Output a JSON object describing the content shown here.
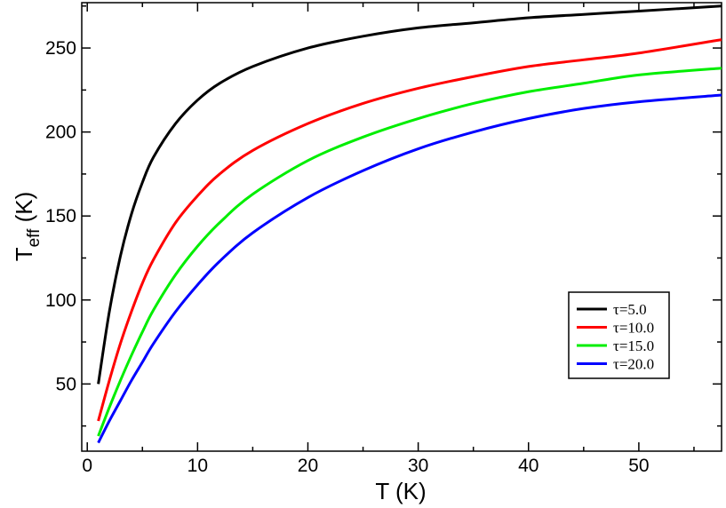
{
  "chart_data": {
    "type": "line",
    "title": "",
    "xlabel": "T (K)",
    "ylabel": {
      "main": "T",
      "subscript": "eff",
      "unit": " (K)"
    },
    "xlim": [
      -0.5,
      57.5
    ],
    "ylim": [
      10,
      277
    ],
    "xticks": [
      0,
      10,
      20,
      30,
      40,
      50
    ],
    "xtick_labels": [
      "0",
      "10",
      "20",
      "30",
      "40",
      "50"
    ],
    "yticks": [
      50,
      100,
      150,
      200,
      250
    ],
    "ytick_labels": [
      "50",
      "100",
      "150",
      "200",
      "250"
    ],
    "grid": false,
    "legend_position": "lower-right",
    "x": [
      1,
      2,
      3,
      4,
      5,
      6,
      8,
      10,
      12,
      15,
      20,
      25,
      30,
      35,
      40,
      45,
      50,
      57.5
    ],
    "series": [
      {
        "name": "τ=5.0",
        "color": "#000000",
        "values": [
          50,
          93,
          126,
          151,
          170,
          185,
          205,
          219,
          229,
          239,
          250,
          257,
          262,
          265,
          268,
          270,
          272,
          275
        ]
      },
      {
        "name": "τ=10.0",
        "color": "#ff0000",
        "values": [
          28,
          52,
          74,
          93,
          110,
          124,
          146,
          162,
          175,
          189,
          205,
          217,
          226,
          233,
          239,
          243,
          247,
          255
        ]
      },
      {
        "name": "τ=15.0",
        "color": "#00ee00",
        "values": [
          19,
          36,
          52,
          67,
          81,
          94,
          115,
          132,
          146,
          163,
          183,
          197,
          208,
          217,
          224,
          229,
          234,
          238
        ]
      },
      {
        "name": "τ=20.0",
        "color": "#0000ff",
        "values": [
          15,
          28,
          40,
          52,
          63,
          74,
          93,
          109,
          123,
          140,
          161,
          177,
          190,
          200,
          208,
          214,
          218,
          222
        ]
      }
    ]
  }
}
